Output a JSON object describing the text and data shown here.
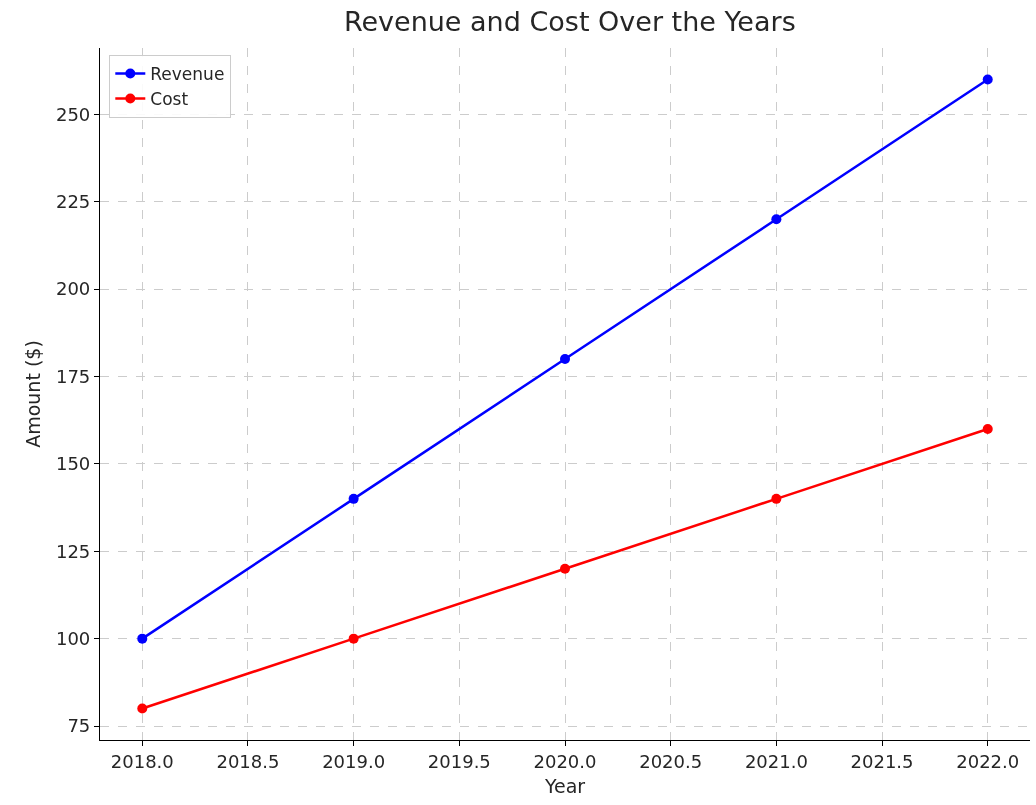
{
  "chart_data": {
    "type": "line",
    "title": "Revenue and Cost Over the Years",
    "xlabel": "Year",
    "ylabel": "Amount ($)",
    "x": [
      2018,
      2019,
      2020,
      2021,
      2022
    ],
    "series": [
      {
        "name": "Revenue",
        "color": "#0000ff",
        "values": [
          100,
          140,
          180,
          220,
          260
        ]
      },
      {
        "name": "Cost",
        "color": "#ff0000",
        "values": [
          80,
          100,
          120,
          140,
          160
        ]
      }
    ],
    "xlim": [
      2017.8,
      2022.2
    ],
    "xticks": [
      {
        "value": 2018,
        "label": "2018.0"
      },
      {
        "value": 2018.5,
        "label": "2018.5"
      },
      {
        "value": 2019,
        "label": "2019.0"
      },
      {
        "value": 2019.5,
        "label": "2019.5"
      },
      {
        "value": 2020,
        "label": "2020.0"
      },
      {
        "value": 2020.5,
        "label": "2020.5"
      },
      {
        "value": 2021,
        "label": "2021.0"
      },
      {
        "value": 2021.5,
        "label": "2021.5"
      },
      {
        "value": 2022,
        "label": "2022.0"
      }
    ],
    "ylim": [
      71,
      269
    ],
    "yticks": [
      75,
      100,
      125,
      150,
      175,
      200,
      225,
      250
    ],
    "grid": true,
    "legend": "top left",
    "marker": "circle",
    "line_style": "solid"
  }
}
